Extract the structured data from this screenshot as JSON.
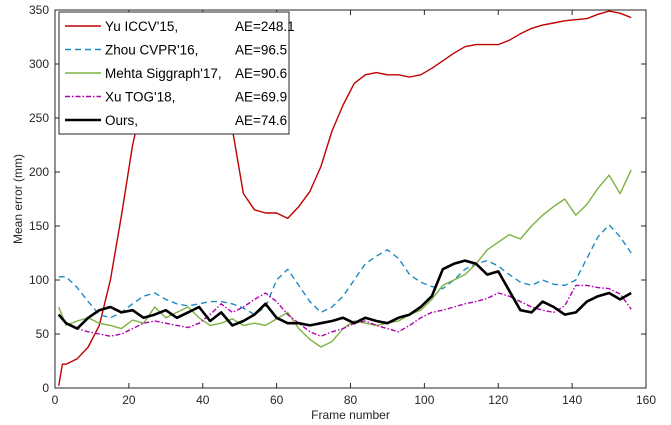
{
  "chart_data": {
    "type": "line",
    "xlabel": "Frame number",
    "ylabel": "Mean error (mm)",
    "xlim": [
      0,
      160
    ],
    "ylim": [
      0,
      350
    ],
    "xticks": [
      0,
      20,
      40,
      60,
      80,
      100,
      120,
      140,
      160
    ],
    "yticks": [
      0,
      50,
      100,
      150,
      200,
      250,
      300,
      350
    ],
    "grid": false,
    "legend_position": "top-left",
    "series": [
      {
        "name": "Yu ICCV'15,",
        "ae": "AE=248.1",
        "color": "#c00000",
        "dash": "solid",
        "x": [
          1,
          2,
          3,
          6,
          9,
          12,
          15,
          18,
          21,
          24,
          27,
          30,
          33,
          36,
          39,
          42,
          45,
          48,
          51,
          54,
          57,
          60,
          63,
          66,
          69,
          72,
          75,
          78,
          81,
          84,
          87,
          90,
          93,
          96,
          99,
          102,
          105,
          108,
          111,
          114,
          117,
          120,
          123,
          126,
          129,
          132,
          135,
          138,
          141,
          144,
          147,
          150,
          153,
          156
        ],
        "y": [
          2,
          22,
          22,
          27,
          38,
          58,
          100,
          160,
          225,
          270,
          295,
          300,
          305,
          310,
          310,
          295,
          265,
          240,
          180,
          165,
          162,
          162,
          157,
          168,
          182,
          205,
          238,
          262,
          282,
          290,
          292,
          290,
          290,
          288,
          290,
          296,
          303,
          310,
          316,
          318,
          318,
          318,
          322,
          328,
          333,
          336,
          338,
          340,
          341,
          342,
          346,
          349,
          347,
          343
        ]
      },
      {
        "name": "Zhou CVPR'16,",
        "ae": "AE=96.5",
        "color": "#1f8ac0",
        "dash": "6,4",
        "x": [
          1,
          3,
          6,
          9,
          12,
          15,
          18,
          21,
          24,
          27,
          30,
          33,
          36,
          39,
          42,
          45,
          48,
          51,
          54,
          57,
          60,
          63,
          66,
          69,
          72,
          75,
          78,
          81,
          84,
          87,
          90,
          93,
          96,
          99,
          102,
          105,
          108,
          111,
          114,
          117,
          120,
          123,
          126,
          129,
          132,
          135,
          138,
          141,
          144,
          147,
          150,
          153,
          156
        ],
        "y": [
          103,
          103,
          93,
          80,
          68,
          65,
          70,
          78,
          85,
          88,
          82,
          78,
          76,
          78,
          80,
          80,
          78,
          74,
          68,
          75,
          100,
          110,
          95,
          80,
          70,
          75,
          85,
          100,
          115,
          122,
          128,
          120,
          105,
          98,
          94,
          92,
          100,
          110,
          115,
          118,
          113,
          105,
          98,
          95,
          100,
          96,
          95,
          100,
          120,
          140,
          151,
          140,
          125
        ]
      },
      {
        "name": "Mehta Siggraph'17,",
        "ae": "AE=90.6",
        "color": "#7cb342",
        "dash": "solid",
        "x": [
          1,
          3,
          6,
          9,
          12,
          15,
          18,
          21,
          24,
          27,
          30,
          33,
          36,
          39,
          42,
          45,
          48,
          51,
          54,
          57,
          60,
          63,
          66,
          69,
          72,
          75,
          78,
          81,
          84,
          87,
          90,
          93,
          96,
          99,
          102,
          105,
          108,
          111,
          114,
          117,
          120,
          123,
          126,
          129,
          132,
          135,
          138,
          141,
          144,
          147,
          150,
          153,
          156
        ],
        "y": [
          75,
          58,
          62,
          65,
          60,
          58,
          55,
          63,
          60,
          75,
          65,
          70,
          75,
          65,
          58,
          60,
          64,
          58,
          60,
          58,
          64,
          70,
          55,
          45,
          38,
          43,
          55,
          62,
          60,
          58,
          60,
          62,
          68,
          72,
          82,
          95,
          100,
          105,
          115,
          128,
          135,
          142,
          138,
          150,
          160,
          168,
          175,
          160,
          170,
          185,
          197,
          180,
          202
        ]
      },
      {
        "name": "Xu TOG'18,",
        "ae": "AE=69.9",
        "color": "#b000b0",
        "dash": "5,2,1.5,2",
        "x": [
          1,
          3,
          6,
          9,
          12,
          15,
          18,
          21,
          24,
          27,
          30,
          33,
          36,
          39,
          42,
          45,
          48,
          51,
          54,
          57,
          60,
          63,
          66,
          69,
          72,
          75,
          78,
          81,
          84,
          87,
          90,
          93,
          96,
          99,
          102,
          105,
          108,
          111,
          114,
          117,
          120,
          123,
          126,
          129,
          132,
          135,
          138,
          141,
          144,
          147,
          150,
          153,
          156
        ],
        "y": [
          68,
          60,
          55,
          52,
          50,
          48,
          50,
          55,
          60,
          62,
          60,
          58,
          56,
          60,
          68,
          78,
          70,
          75,
          82,
          88,
          80,
          68,
          60,
          52,
          48,
          52,
          55,
          60,
          62,
          58,
          55,
          52,
          58,
          65,
          70,
          72,
          75,
          78,
          80,
          83,
          88,
          85,
          80,
          75,
          72,
          70,
          76,
          95,
          95,
          93,
          92,
          87,
          73
        ]
      },
      {
        "name": "Ours,",
        "ae": "AE=74.6",
        "color": "#000000",
        "dash": "solid",
        "x": [
          1,
          3,
          6,
          9,
          12,
          15,
          18,
          21,
          24,
          27,
          30,
          33,
          36,
          39,
          42,
          45,
          48,
          51,
          54,
          57,
          60,
          63,
          66,
          69,
          72,
          75,
          78,
          81,
          84,
          87,
          90,
          93,
          96,
          99,
          102,
          105,
          108,
          111,
          114,
          117,
          120,
          123,
          126,
          129,
          132,
          135,
          138,
          141,
          144,
          147,
          150,
          153,
          156
        ],
        "y": [
          68,
          60,
          55,
          65,
          72,
          75,
          70,
          72,
          65,
          68,
          72,
          65,
          70,
          75,
          62,
          70,
          58,
          62,
          68,
          78,
          65,
          60,
          60,
          58,
          60,
          62,
          65,
          60,
          65,
          62,
          60,
          65,
          68,
          75,
          85,
          110,
          115,
          118,
          115,
          105,
          108,
          90,
          72,
          70,
          80,
          75,
          68,
          70,
          80,
          85,
          88,
          82,
          88
        ]
      }
    ]
  }
}
